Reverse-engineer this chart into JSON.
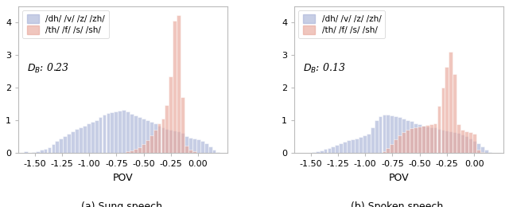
{
  "subplot_a": {
    "title": "(a) Sung speech.",
    "db_label": "$D_B$: 0.23",
    "voiced_label": "/dh/ /v/ /z/ /zh/",
    "unvoiced_label": "/th/ /f/ /s/ /sh/",
    "voiced_color": "#aab4d8",
    "unvoiced_color": "#e8a89c",
    "voiced_heights": [
      0.05,
      0.02,
      0.04,
      0.06,
      0.1,
      0.14,
      0.18,
      0.28,
      0.38,
      0.45,
      0.52,
      0.6,
      0.68,
      0.75,
      0.8,
      0.85,
      0.9,
      0.95,
      1.02,
      1.1,
      1.18,
      1.22,
      1.25,
      1.28,
      1.3,
      1.32,
      1.28,
      1.2,
      1.15,
      1.1,
      1.05,
      1.0,
      0.95,
      0.9,
      0.85,
      0.8,
      0.75,
      0.72,
      0.7,
      0.68,
      0.62,
      0.52,
      0.48,
      0.45,
      0.42,
      0.38,
      0.3,
      0.2,
      0.1,
      0.04
    ],
    "unvoiced_heights": [
      0.0,
      0.0,
      0.0,
      0.0,
      0.0,
      0.0,
      0.0,
      0.0,
      0.0,
      0.0,
      0.0,
      0.0,
      0.0,
      0.0,
      0.0,
      0.0,
      0.0,
      0.0,
      0.0,
      0.0,
      0.0,
      0.0,
      0.0,
      0.0,
      0.0,
      0.02,
      0.05,
      0.08,
      0.12,
      0.18,
      0.28,
      0.4,
      0.55,
      0.72,
      0.9,
      1.05,
      1.48,
      2.35,
      4.05,
      4.22,
      1.72,
      0.22,
      0.1,
      0.05,
      0.02,
      0.01,
      0.0,
      0.0,
      0.0,
      0.0
    ],
    "xlim": [
      -1.65,
      0.27
    ],
    "ylim": [
      0,
      4.5
    ],
    "yticks": [
      0,
      1,
      2,
      3,
      4
    ],
    "xticks": [
      -1.5,
      -1.25,
      -1.0,
      -0.75,
      -0.5,
      -0.25,
      0.0
    ],
    "xlabel": "POV"
  },
  "subplot_b": {
    "title": "(b) Spoken speech.",
    "db_label": "$D_B$: 0.13",
    "voiced_label": "/dh/ /v/ /z/ /zh/",
    "unvoiced_label": "/th/ /f/ /s/ /sh/",
    "voiced_color": "#aab4d8",
    "unvoiced_color": "#e8a89c",
    "voiced_heights": [
      0.0,
      0.01,
      0.02,
      0.04,
      0.06,
      0.08,
      0.12,
      0.16,
      0.2,
      0.25,
      0.3,
      0.35,
      0.4,
      0.43,
      0.46,
      0.5,
      0.55,
      0.6,
      0.78,
      1.02,
      1.12,
      1.18,
      1.18,
      1.15,
      1.12,
      1.1,
      1.05,
      1.02,
      0.98,
      0.92,
      0.88,
      0.85,
      0.82,
      0.8,
      0.78,
      0.75,
      0.72,
      0.7,
      0.68,
      0.65,
      0.62,
      0.58,
      0.52,
      0.45,
      0.38,
      0.3,
      0.2,
      0.1,
      0.04,
      0.01
    ],
    "unvoiced_heights": [
      0.0,
      0.0,
      0.0,
      0.0,
      0.0,
      0.0,
      0.0,
      0.0,
      0.0,
      0.0,
      0.0,
      0.0,
      0.0,
      0.0,
      0.0,
      0.0,
      0.0,
      0.0,
      0.0,
      0.0,
      0.0,
      0.05,
      0.15,
      0.28,
      0.42,
      0.55,
      0.65,
      0.72,
      0.76,
      0.8,
      0.82,
      0.84,
      0.86,
      0.88,
      0.9,
      1.45,
      2.0,
      2.65,
      3.1,
      2.42,
      0.88,
      0.72,
      0.68,
      0.65,
      0.6,
      0.1,
      0.04,
      0.01,
      0.0,
      0.0
    ],
    "xlim": [
      -1.65,
      0.27
    ],
    "ylim": [
      0,
      4.5
    ],
    "yticks": [
      0,
      1,
      2,
      3,
      4
    ],
    "xticks": [
      -1.5,
      -1.25,
      -1.0,
      -0.75,
      -0.5,
      -0.25,
      0.0
    ],
    "xlabel": "POV"
  },
  "bin_start": -1.6,
  "bin_end": 0.2,
  "n_bins": 50,
  "fig_width": 6.4,
  "fig_height": 2.6,
  "dpi": 100,
  "background_color": "#ffffff",
  "edge_color": "#ffffff",
  "edge_linewidth": 0.5,
  "voiced_alpha": 0.65,
  "unvoiced_alpha": 0.65
}
